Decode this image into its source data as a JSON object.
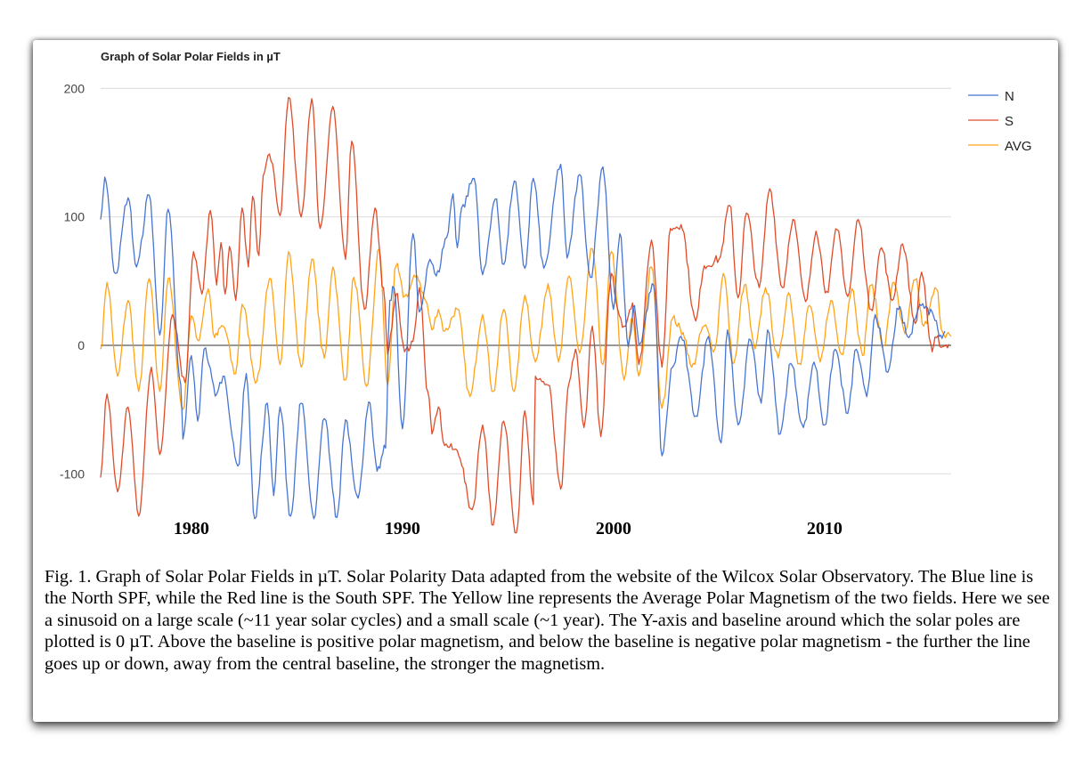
{
  "chart_data": {
    "type": "line",
    "title": "Graph of Solar Polar Fields in µT",
    "xlabel": "",
    "ylabel": "",
    "xlim": [
      1975.7,
      2016.0
    ],
    "ylim": [
      -175,
      210
    ],
    "yticks": [
      200,
      100,
      0,
      -100
    ],
    "ytick_labels": [
      "200",
      "100",
      "0",
      "-100"
    ],
    "xticks": [
      1980,
      1990,
      2000,
      2010
    ],
    "xtick_labels": [
      "1980",
      "1990",
      "2000",
      "2010"
    ],
    "grid": true,
    "baseline": 0,
    "legend": {
      "position": "right",
      "entries": [
        "N",
        "S",
        "AVG"
      ]
    },
    "series": [
      {
        "name": "N",
        "color": "#3366cc",
        "points": [
          [
            1975.7,
            98
          ],
          [
            1975.9,
            131
          ],
          [
            1976.4,
            56
          ],
          [
            1977.0,
            115
          ],
          [
            1977.4,
            61
          ],
          [
            1978.0,
            117
          ],
          [
            1978.5,
            8
          ],
          [
            1978.9,
            106
          ],
          [
            1979.5,
            -31
          ],
          [
            1979.6,
            -73
          ],
          [
            1980.0,
            -8
          ],
          [
            1980.3,
            -59
          ],
          [
            1980.6,
            -3
          ],
          [
            1981.2,
            -38
          ],
          [
            1981.5,
            -24
          ],
          [
            1982.2,
            -94
          ],
          [
            1982.6,
            -22
          ],
          [
            1983.0,
            -135
          ],
          [
            1983.6,
            -45
          ],
          [
            1983.9,
            -117
          ],
          [
            1984.2,
            -48
          ],
          [
            1984.7,
            -133
          ],
          [
            1985.2,
            -45
          ],
          [
            1985.8,
            -135
          ],
          [
            1986.3,
            -57
          ],
          [
            1986.9,
            -134
          ],
          [
            1987.3,
            -58
          ],
          [
            1987.9,
            -119
          ],
          [
            1988.4,
            -44
          ],
          [
            1988.8,
            -98
          ],
          [
            1989.2,
            -80
          ],
          [
            1989.4,
            35
          ],
          [
            1989.6,
            45
          ],
          [
            1990.0,
            -65
          ],
          [
            1990.5,
            87
          ],
          [
            1990.8,
            26
          ],
          [
            1991.3,
            67
          ],
          [
            1991.6,
            54
          ],
          [
            1992.1,
            84
          ],
          [
            1992.4,
            118
          ],
          [
            1992.6,
            76
          ],
          [
            1992.8,
            107
          ],
          [
            1993.4,
            130
          ],
          [
            1993.8,
            55
          ],
          [
            1994.4,
            114
          ],
          [
            1994.8,
            63
          ],
          [
            1995.3,
            128
          ],
          [
            1995.8,
            60
          ],
          [
            1996.2,
            130
          ],
          [
            1996.7,
            60
          ],
          [
            1997.5,
            141
          ],
          [
            1997.8,
            68
          ],
          [
            1998.4,
            133
          ],
          [
            1998.9,
            53
          ],
          [
            1999.5,
            139
          ],
          [
            2000.0,
            28
          ],
          [
            2000.3,
            87
          ],
          [
            2000.7,
            -1
          ],
          [
            2001.0,
            31
          ],
          [
            2001.2,
            1
          ],
          [
            2001.9,
            47
          ],
          [
            2002.3,
            -86
          ],
          [
            2002.8,
            -17
          ],
          [
            2003.2,
            7
          ],
          [
            2003.9,
            -55
          ],
          [
            2004.5,
            7
          ],
          [
            2005.1,
            -76
          ],
          [
            2005.4,
            12
          ],
          [
            2005.9,
            -62
          ],
          [
            2006.5,
            4
          ],
          [
            2007.0,
            -45
          ],
          [
            2007.3,
            12
          ],
          [
            2007.9,
            -69
          ],
          [
            2008.4,
            -14
          ],
          [
            2009.0,
            -64
          ],
          [
            2009.5,
            -13
          ],
          [
            2010.0,
            -62
          ],
          [
            2010.5,
            -3
          ],
          [
            2011.1,
            -53
          ],
          [
            2011.5,
            -3
          ],
          [
            2012.0,
            -40
          ],
          [
            2012.4,
            24
          ],
          [
            2013.0,
            -21
          ],
          [
            2013.5,
            28
          ],
          [
            2014.0,
            6
          ],
          [
            2014.5,
            32
          ],
          [
            2015.1,
            26
          ],
          [
            2015.5,
            8
          ],
          [
            2015.7,
            11
          ]
        ]
      },
      {
        "name": "S",
        "color": "#dc3912",
        "points": [
          [
            1975.7,
            -103
          ],
          [
            1976.0,
            -38
          ],
          [
            1976.5,
            -114
          ],
          [
            1977.0,
            -48
          ],
          [
            1977.5,
            -133
          ],
          [
            1978.1,
            -17
          ],
          [
            1978.5,
            -85
          ],
          [
            1979.1,
            24
          ],
          [
            1979.7,
            -29
          ],
          [
            1980.1,
            73
          ],
          [
            1980.5,
            40
          ],
          [
            1980.9,
            105
          ],
          [
            1981.2,
            47
          ],
          [
            1981.4,
            80
          ],
          [
            1981.6,
            40
          ],
          [
            1981.8,
            77
          ],
          [
            1982.1,
            35
          ],
          [
            1982.4,
            107
          ],
          [
            1982.7,
            61
          ],
          [
            1982.9,
            116
          ],
          [
            1983.2,
            70
          ],
          [
            1983.4,
            132
          ],
          [
            1983.7,
            149
          ],
          [
            1984.2,
            101
          ],
          [
            1984.6,
            193
          ],
          [
            1985.2,
            100
          ],
          [
            1985.7,
            192
          ],
          [
            1986.1,
            91
          ],
          [
            1986.7,
            186
          ],
          [
            1987.3,
            67
          ],
          [
            1987.6,
            159
          ],
          [
            1988.2,
            28
          ],
          [
            1988.7,
            107
          ],
          [
            1989.1,
            45
          ],
          [
            1989.3,
            -7
          ],
          [
            1989.7,
            40
          ],
          [
            1990.1,
            -5
          ],
          [
            1990.5,
            3
          ],
          [
            1990.8,
            45
          ],
          [
            1991.2,
            -36
          ],
          [
            1991.4,
            -69
          ],
          [
            1991.7,
            -48
          ],
          [
            1992.0,
            -78
          ],
          [
            1992.6,
            -82
          ],
          [
            1993.3,
            -128
          ],
          [
            1993.8,
            -62
          ],
          [
            1994.3,
            -140
          ],
          [
            1994.8,
            -59
          ],
          [
            1995.4,
            -146
          ],
          [
            1995.8,
            -51
          ],
          [
            1996.2,
            -124
          ],
          [
            1996.3,
            -24
          ],
          [
            1996.9,
            -31
          ],
          [
            1997.5,
            -112
          ],
          [
            1997.9,
            -29
          ],
          [
            1998.2,
            -3
          ],
          [
            1998.6,
            -64
          ],
          [
            1999.0,
            15
          ],
          [
            1999.4,
            -71
          ],
          [
            1999.9,
            56
          ],
          [
            2000.2,
            28
          ],
          [
            2000.5,
            15
          ],
          [
            2000.9,
            33
          ],
          [
            2001.2,
            -15
          ],
          [
            2001.8,
            82
          ],
          [
            2002.3,
            -17
          ],
          [
            2002.7,
            91
          ],
          [
            2003.2,
            94
          ],
          [
            2003.9,
            19
          ],
          [
            2004.3,
            62
          ],
          [
            2005.0,
            67
          ],
          [
            2005.5,
            109
          ],
          [
            2005.9,
            37
          ],
          [
            2006.3,
            103
          ],
          [
            2006.9,
            45
          ],
          [
            2007.4,
            122
          ],
          [
            2008.0,
            45
          ],
          [
            2008.5,
            98
          ],
          [
            2009.1,
            34
          ],
          [
            2009.6,
            89
          ],
          [
            2010.1,
            42
          ],
          [
            2010.6,
            90
          ],
          [
            2011.1,
            38
          ],
          [
            2011.6,
            98
          ],
          [
            2012.2,
            28
          ],
          [
            2012.7,
            76
          ],
          [
            2013.2,
            35
          ],
          [
            2013.7,
            79
          ],
          [
            2014.3,
            17
          ],
          [
            2014.6,
            57
          ],
          [
            2015.1,
            -5
          ],
          [
            2015.3,
            6
          ],
          [
            2015.6,
            -1
          ],
          [
            2015.9,
            1
          ]
        ]
      },
      {
        "name": "AVG",
        "color": "#ff9900",
        "points": [
          [
            1975.7,
            -3
          ],
          [
            1976.0,
            49
          ],
          [
            1976.5,
            -24
          ],
          [
            1977.0,
            35
          ],
          [
            1977.5,
            -36
          ],
          [
            1978.0,
            52
          ],
          [
            1978.5,
            -36
          ],
          [
            1978.9,
            52
          ],
          [
            1979.6,
            -50
          ],
          [
            1980.0,
            23
          ],
          [
            1980.3,
            4
          ],
          [
            1980.8,
            44
          ],
          [
            1981.1,
            6
          ],
          [
            1981.5,
            15
          ],
          [
            1982.1,
            -22
          ],
          [
            1982.4,
            32
          ],
          [
            1983.1,
            -28
          ],
          [
            1983.7,
            52
          ],
          [
            1984.2,
            -15
          ],
          [
            1984.6,
            73
          ],
          [
            1985.2,
            -17
          ],
          [
            1985.7,
            67
          ],
          [
            1986.3,
            -10
          ],
          [
            1986.7,
            61
          ],
          [
            1987.3,
            -27
          ],
          [
            1987.7,
            53
          ],
          [
            1988.3,
            -32
          ],
          [
            1988.9,
            75
          ],
          [
            1989.3,
            -31
          ],
          [
            1989.7,
            62
          ],
          [
            1990.1,
            38
          ],
          [
            1990.7,
            54
          ],
          [
            1991.1,
            35
          ],
          [
            1991.4,
            12
          ],
          [
            1991.7,
            28
          ],
          [
            1992.0,
            11
          ],
          [
            1992.6,
            28
          ],
          [
            1993.2,
            -40
          ],
          [
            1993.8,
            24
          ],
          [
            1994.3,
            -36
          ],
          [
            1994.8,
            28
          ],
          [
            1995.3,
            -36
          ],
          [
            1995.8,
            39
          ],
          [
            1996.3,
            -13
          ],
          [
            1996.9,
            48
          ],
          [
            1997.4,
            -13
          ],
          [
            1997.9,
            54
          ],
          [
            1998.4,
            -6
          ],
          [
            1999.0,
            75
          ],
          [
            1999.5,
            -15
          ],
          [
            1999.9,
            73
          ],
          [
            2000.5,
            -27
          ],
          [
            2000.9,
            21
          ],
          [
            2001.2,
            -24
          ],
          [
            2001.8,
            61
          ],
          [
            2002.3,
            -49
          ],
          [
            2002.8,
            21
          ],
          [
            2003.3,
            10
          ],
          [
            2003.7,
            -17
          ],
          [
            2004.3,
            15
          ],
          [
            2004.8,
            -3
          ],
          [
            2005.2,
            56
          ],
          [
            2005.7,
            -14
          ],
          [
            2006.2,
            47
          ],
          [
            2006.7,
            -3
          ],
          [
            2007.2,
            45
          ],
          [
            2007.8,
            -10
          ],
          [
            2008.3,
            41
          ],
          [
            2008.8,
            -14
          ],
          [
            2009.3,
            31
          ],
          [
            2009.8,
            -13
          ],
          [
            2010.3,
            35
          ],
          [
            2010.8,
            -7
          ],
          [
            2011.3,
            44
          ],
          [
            2011.8,
            -8
          ],
          [
            2012.2,
            47
          ],
          [
            2012.8,
            0
          ],
          [
            2013.3,
            49
          ],
          [
            2013.8,
            9
          ],
          [
            2014.3,
            51
          ],
          [
            2014.7,
            15
          ],
          [
            2015.3,
            44
          ],
          [
            2015.6,
            10
          ],
          [
            2016.0,
            7
          ]
        ]
      }
    ]
  },
  "figure": {
    "caption": "Fig. 1.  Graph of Solar Polar Fields in µT. Solar Polarity Data adapted from the website of the Wilcox Solar Observatory. The Blue line is the North SPF, while the Red line is the South SPF. The Yellow line represents the Average Polar Magnetism of the two fields. Here we see a sinusoid on a large scale (~11 year solar cycles) and a small scale (~1 year). The Y-axis and baseline around which the solar poles are plotted is 0 µT. Above the baseline is positive polar magnetism, and below the baseline is negative polar magnetism - the further the line goes up or down, away from the central baseline, the stronger the magnetism."
  }
}
